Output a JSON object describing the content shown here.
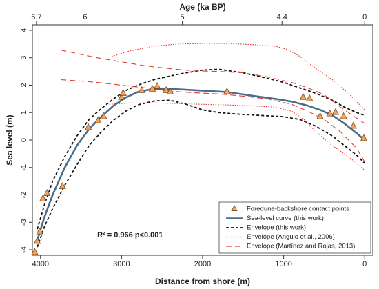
{
  "chart_data": {
    "type": "line",
    "top_axis": {
      "label": "Age (ka BP)",
      "ticks": [
        {
          "label": "6.7",
          "distance": 4050
        },
        {
          "label": "6",
          "distance": 3450
        },
        {
          "label": "5",
          "distance": 2250
        },
        {
          "label": "4.4",
          "distance": 1020
        },
        {
          "label": "0",
          "distance": 0
        }
      ]
    },
    "xlabel": "Distance from shore (m)",
    "ylabel": "Sea level (m)",
    "xlim": [
      4000,
      0
    ],
    "ylim": [
      -4,
      4
    ],
    "xticks": [
      4000,
      3000,
      2000,
      1000,
      0
    ],
    "yticks": [
      -4,
      -3,
      -2,
      -1,
      0,
      1,
      2,
      3,
      4
    ],
    "series": [
      {
        "name": "Foredune-backshore contact points",
        "kind": "points",
        "color": "#f0a45c",
        "x": [
          4070,
          4040,
          4010,
          3970,
          3920,
          3730,
          3410,
          3290,
          3220,
          3000,
          2980,
          2750,
          2620,
          2560,
          2450,
          2400,
          1700,
          760,
          680,
          550,
          430,
          360,
          260,
          140,
          10
        ],
        "y": [
          -4.1,
          -3.7,
          -3.35,
          -2.15,
          -1.95,
          -1.7,
          0.45,
          0.7,
          0.85,
          1.55,
          1.7,
          1.8,
          1.85,
          1.95,
          1.8,
          1.75,
          1.75,
          1.55,
          1.5,
          0.85,
          0.95,
          1.0,
          0.85,
          0.5,
          0.05
        ]
      },
      {
        "name": "Sea-level curve (this work)",
        "kind": "line",
        "color": "#4a6d8c",
        "x": [
          4040,
          3950,
          3850,
          3700,
          3550,
          3400,
          3250,
          3100,
          2950,
          2800,
          2600,
          2300,
          2000,
          1700,
          1400,
          1100,
          900,
          700,
          550,
          400,
          250,
          100,
          0
        ],
        "y": [
          -3.65,
          -2.8,
          -2.0,
          -1.0,
          -0.2,
          0.4,
          0.85,
          1.25,
          1.55,
          1.75,
          1.87,
          1.85,
          1.8,
          1.75,
          1.62,
          1.5,
          1.4,
          1.25,
          1.1,
          0.9,
          0.6,
          0.25,
          0.0
        ]
      },
      {
        "name": "Envelope (this work)",
        "kind": "line",
        "color": "#111111",
        "dash": "4,3",
        "x": [
          4040,
          3950,
          3850,
          3700,
          3550,
          3400,
          3250,
          3100,
          2950,
          2800,
          2600,
          2300,
          2000,
          1800,
          1500,
          1200,
          1000,
          800,
          600,
          400,
          250,
          100,
          0
        ],
        "y": [
          -3.25,
          -2.35,
          -1.5,
          -0.6,
          0.15,
          0.75,
          1.15,
          1.5,
          1.8,
          2.0,
          2.2,
          2.4,
          2.55,
          2.58,
          2.45,
          2.25,
          2.1,
          1.9,
          1.7,
          1.45,
          1.2,
          1.0,
          0.9
        ]
      },
      {
        "name": "Envelope (this work)",
        "kind": "line",
        "color": "#111111",
        "dash": "4,3",
        "x": [
          4040,
          3950,
          3850,
          3700,
          3550,
          3400,
          3250,
          3100,
          2950,
          2800,
          2600,
          2400,
          2200,
          2000,
          1800,
          1600,
          1300,
          1000,
          800,
          600,
          400,
          250,
          100,
          0
        ],
        "y": [
          -3.9,
          -3.15,
          -2.5,
          -1.65,
          -0.9,
          -0.2,
          0.3,
          0.72,
          1.05,
          1.28,
          1.42,
          1.45,
          1.3,
          1.1,
          1.0,
          0.95,
          0.9,
          0.85,
          0.75,
          0.5,
          0.15,
          -0.2,
          -0.55,
          -0.85
        ]
      },
      {
        "name": "Envelope (Angulo et al., 2006)",
        "kind": "line",
        "color": "#e03a2f",
        "dash": "1.5,2",
        "x": [
          3150,
          2900,
          2600,
          2300,
          2000,
          1700,
          1400,
          1100,
          950,
          800,
          600,
          400,
          200,
          0
        ],
        "y": [
          3.02,
          3.25,
          3.42,
          3.5,
          3.52,
          3.52,
          3.48,
          3.42,
          3.3,
          3.05,
          2.6,
          2.2,
          1.7,
          1.1
        ]
      },
      {
        "name": "Envelope (Angulo et al., 2006)",
        "kind": "line",
        "color": "#e03a2f",
        "dash": "1.5,2",
        "x": [
          3150,
          2900,
          2600,
          2300,
          2000,
          1700,
          1400,
          1100,
          900,
          750,
          600,
          400,
          200,
          0
        ],
        "y": [
          1.3,
          1.35,
          1.35,
          1.33,
          1.3,
          1.28,
          1.25,
          1.2,
          1.05,
          0.75,
          0.3,
          -0.2,
          -0.6,
          -1.1
        ]
      },
      {
        "name": "Envelope (Martínez and Rojas, 2013)",
        "kind": "line",
        "color": "#e03a2f",
        "dash": "8,5",
        "x": [
          3750,
          3500,
          3300,
          3000,
          2700,
          2400,
          2100,
          1800,
          1500,
          1200,
          900,
          700,
          500,
          300,
          100,
          0
        ],
        "y": [
          3.28,
          3.12,
          3.0,
          2.85,
          2.7,
          2.6,
          2.52,
          2.5,
          2.45,
          2.3,
          2.1,
          1.9,
          1.65,
          1.2,
          0.8,
          0.6
        ]
      },
      {
        "name": "Envelope (Martínez and Rojas, 2013)",
        "kind": "line",
        "color": "#e03a2f",
        "dash": "8,5",
        "x": [
          3750,
          3500,
          3300,
          3000,
          2700,
          2400,
          2100,
          1800,
          1500,
          1200,
          900,
          700,
          500,
          300,
          100,
          0
        ],
        "y": [
          2.2,
          2.15,
          2.1,
          2.0,
          1.9,
          1.78,
          1.72,
          1.68,
          1.6,
          1.5,
          1.3,
          1.05,
          0.75,
          0.3,
          -0.3,
          -0.8
        ]
      }
    ],
    "legend": {
      "position": "bottom-right",
      "entries": [
        {
          "label": "Foredune-backshore contact points",
          "kind": "points",
          "color": "#f0a45c"
        },
        {
          "label": "Sea-level curve (this work)",
          "kind": "line",
          "color": "#4a6d8c"
        },
        {
          "label": "Envelope (this work)",
          "kind": "line",
          "color": "#111111",
          "dash": "4,3"
        },
        {
          "label": "Envelope (Angulo et al., 2006)",
          "kind": "line",
          "color": "#e03a2f",
          "dash": "1.5,2"
        },
        {
          "label": "Envelope (Martínez and Rojas, 2013)",
          "kind": "line",
          "color": "#e03a2f",
          "dash": "8,5"
        }
      ]
    },
    "annotations": [
      {
        "text": "R² =  0.966    p<0.001",
        "x": 3300,
        "y": -3.55
      }
    ],
    "grid": false
  }
}
